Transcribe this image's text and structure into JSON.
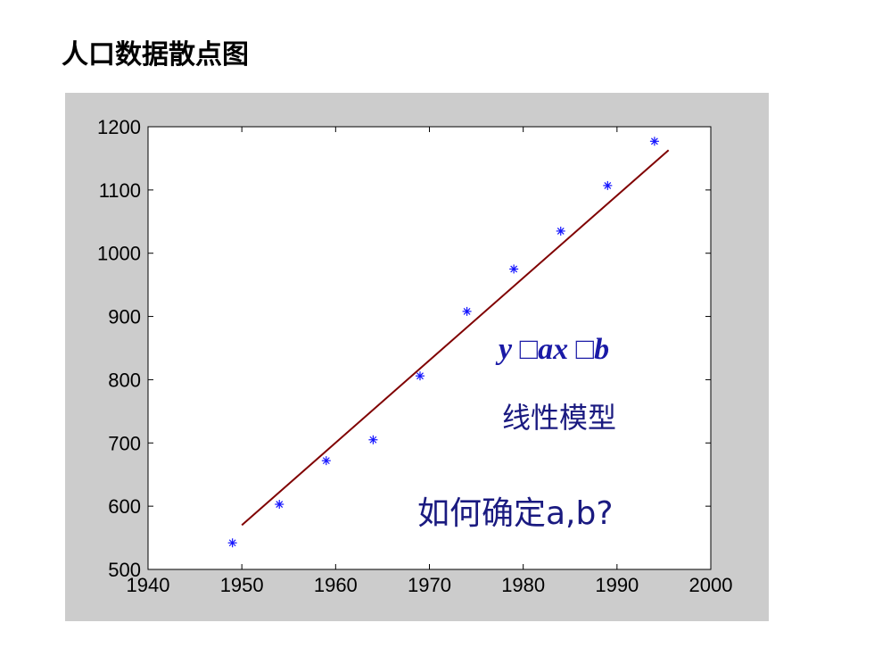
{
  "title": "人口数据散点图",
  "colors": {
    "panel_background": "#cccccc",
    "plot_background": "#ffffff",
    "marker": "#1414ff",
    "fit_line": "#800000",
    "annotation": "#1a1aa6"
  },
  "annotations": {
    "equation": "y □ax □b",
    "model_label": "线性模型",
    "question": "如何确定a,b?"
  },
  "chart_data": {
    "type": "scatter",
    "title": "人口数据散点图",
    "xlabel": "",
    "ylabel": "",
    "xlim": [
      1940,
      2000
    ],
    "ylim": [
      500,
      1200
    ],
    "xticks": [
      1940,
      1950,
      1960,
      1970,
      1980,
      1990,
      2000
    ],
    "yticks": [
      500,
      600,
      700,
      800,
      900,
      1000,
      1100,
      1200
    ],
    "grid": false,
    "marker": "*",
    "series": [
      {
        "x": [
          1949,
          1954,
          1959,
          1964,
          1969,
          1974,
          1979,
          1984,
          1989,
          1994
        ],
        "y": [
          542,
          603,
          672,
          705,
          806,
          908,
          975,
          1035,
          1107,
          1177
        ]
      }
    ],
    "fit_line": {
      "x": [
        1950,
        1995.5
      ],
      "y": [
        570,
        1163
      ]
    }
  }
}
